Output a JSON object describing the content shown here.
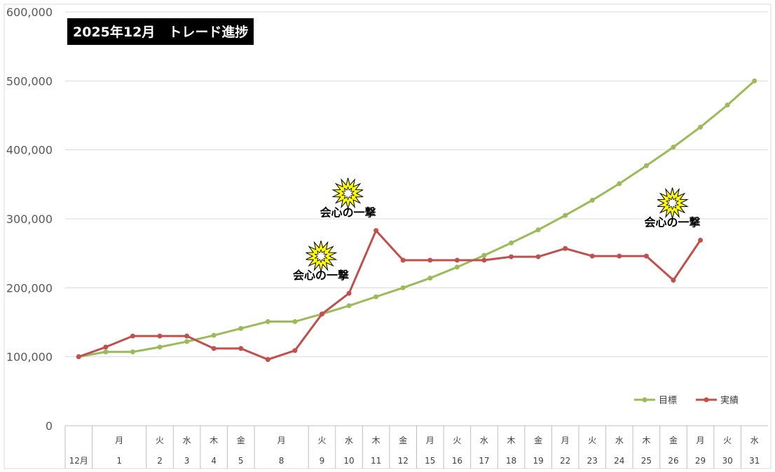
{
  "chart_data": {
    "type": "line",
    "title": "2025年12月　トレード進捗",
    "ylim": [
      0,
      600000
    ],
    "yticks": [
      "0",
      "100,000",
      "200,000",
      "300,000",
      "400,000",
      "500,000",
      "600,000"
    ],
    "grid": true,
    "legend_position": "bottom-right",
    "categories": [
      {
        "weekday": "",
        "day": "12月"
      },
      {
        "weekday": "月",
        "day": "1"
      },
      {
        "weekday": "",
        "day": ""
      },
      {
        "weekday": "火",
        "day": "2"
      },
      {
        "weekday": "水",
        "day": "3"
      },
      {
        "weekday": "木",
        "day": "4"
      },
      {
        "weekday": "金",
        "day": "5"
      },
      {
        "weekday": "月",
        "day": "8"
      },
      {
        "weekday": "",
        "day": ""
      },
      {
        "weekday": "火",
        "day": "9"
      },
      {
        "weekday": "水",
        "day": "10"
      },
      {
        "weekday": "木",
        "day": "11"
      },
      {
        "weekday": "金",
        "day": "12"
      },
      {
        "weekday": "月",
        "day": "15"
      },
      {
        "weekday": "火",
        "day": "16"
      },
      {
        "weekday": "水",
        "day": "17"
      },
      {
        "weekday": "木",
        "day": "18"
      },
      {
        "weekday": "金",
        "day": "19"
      },
      {
        "weekday": "月",
        "day": "22"
      },
      {
        "weekday": "火",
        "day": "23"
      },
      {
        "weekday": "水",
        "day": "24"
      },
      {
        "weekday": "木",
        "day": "25"
      },
      {
        "weekday": "金",
        "day": "26"
      },
      {
        "weekday": "月",
        "day": "29"
      },
      {
        "weekday": "火",
        "day": "30"
      },
      {
        "weekday": "水",
        "day": "31"
      }
    ],
    "series": [
      {
        "name": "目標",
        "color": "#9bbb59",
        "values": [
          100000,
          107000,
          107000,
          114000,
          122000,
          131000,
          141000,
          151000,
          151000,
          162000,
          174000,
          187000,
          200000,
          214000,
          230000,
          247000,
          265000,
          284000,
          305000,
          327000,
          351000,
          377000,
          404000,
          433000,
          465000,
          500000
        ]
      },
      {
        "name": "実績",
        "color": "#c0504d",
        "values": [
          100000,
          114000,
          130000,
          130000,
          130000,
          112000,
          112000,
          96000,
          109000,
          162000,
          192000,
          283000,
          240000,
          240000,
          240000,
          240000,
          245000,
          245000,
          257000,
          246000,
          246000,
          246000,
          211000,
          269000,
          null,
          null
        ]
      }
    ],
    "annotations": [
      {
        "text": "会心の一撃",
        "index": 10,
        "icon": "starburst-icon"
      },
      {
        "text": "会心の一撃",
        "index": 11,
        "icon": "starburst-icon"
      },
      {
        "text": "会心の一撃",
        "index": 23,
        "icon": "starburst-icon"
      }
    ]
  }
}
